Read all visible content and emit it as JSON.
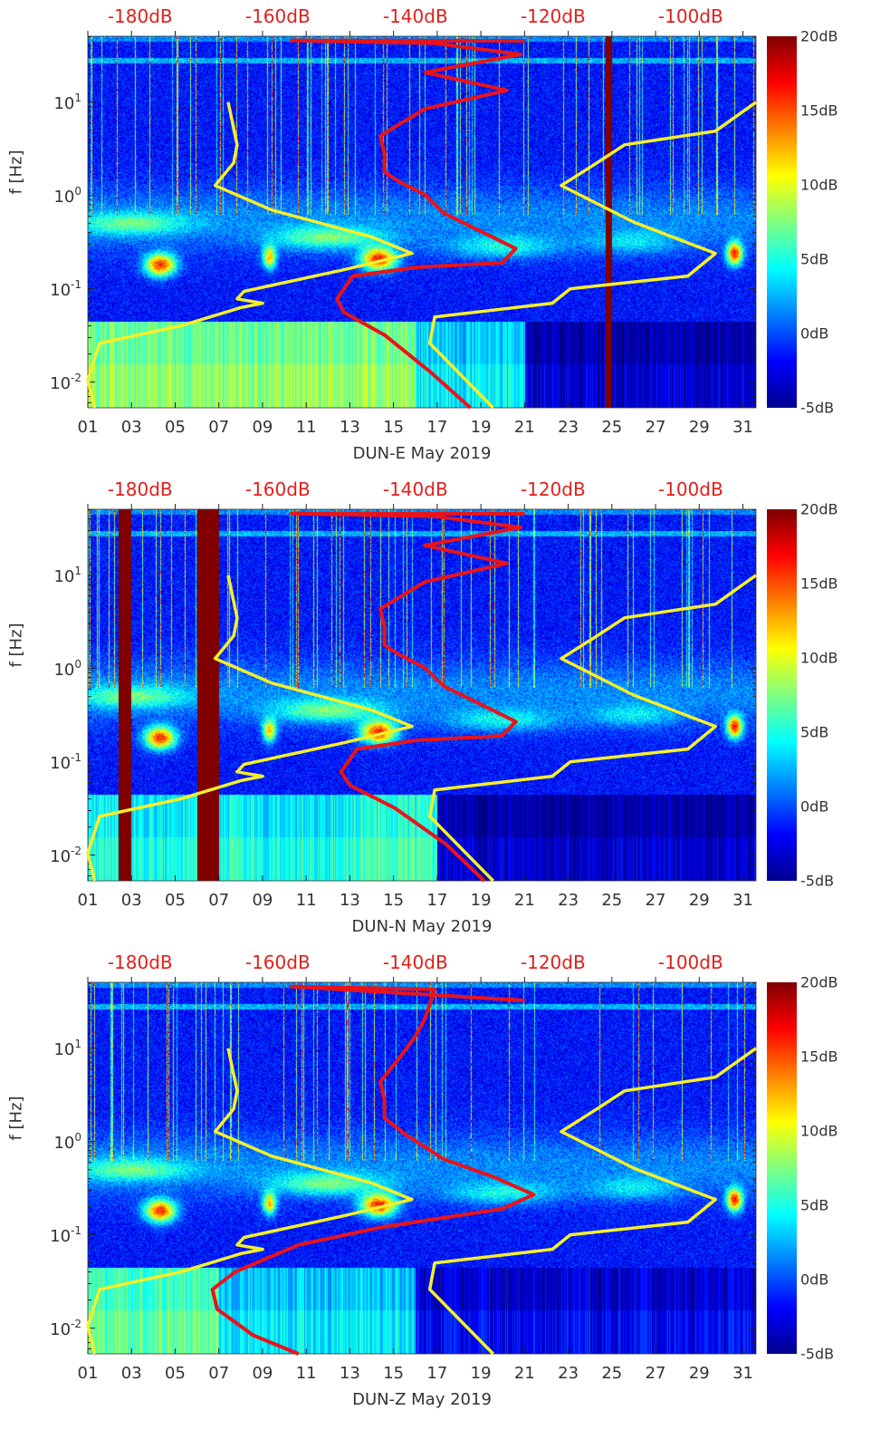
{
  "chart_data": [
    {
      "type": "heatmap",
      "xlabel": "DUN-E May 2019",
      "ylabel": "f [Hz]",
      "x_ticks": [
        "01",
        "03",
        "05",
        "07",
        "09",
        "11",
        "13",
        "15",
        "17",
        "19",
        "21",
        "23",
        "25",
        "27",
        "29",
        "31"
      ],
      "x_tick_days": [
        1,
        3,
        5,
        7,
        9,
        11,
        13,
        15,
        17,
        19,
        21,
        23,
        25,
        27,
        29,
        31
      ],
      "xlim_days": [
        1,
        31.6
      ],
      "y_ticks": [
        {
          "base": "10",
          "exp": "1",
          "value": 10
        },
        {
          "base": "10",
          "exp": "0",
          "value": 1
        },
        {
          "base": "10",
          "exp": "-1",
          "value": 0.1
        },
        {
          "base": "10",
          "exp": "-2",
          "value": 0.01
        }
      ],
      "ylim_hz": [
        0.0053,
        51
      ],
      "top_axis": {
        "labels": [
          "-180dB",
          "-160dB",
          "-140dB",
          "-120dB",
          "-100dB"
        ],
        "values": [
          -180,
          -160,
          -140,
          -120,
          -100
        ],
        "xlim_db": [
          -187.6,
          -90.5
        ]
      },
      "colorbar": {
        "labels": [
          "20dB",
          "15dB",
          "10dB",
          "5dB",
          "0dB",
          "-5dB"
        ],
        "values": [
          20,
          15,
          10,
          5,
          0,
          -5
        ],
        "range": [
          -5,
          20
        ]
      },
      "data_gaps_days": [
        [
          24.7,
          25.0
        ]
      ],
      "low_freq_levels": [
        [
          1,
          16,
          7
        ],
        [
          16,
          21,
          3
        ],
        [
          21,
          32,
          -4
        ]
      ],
      "series": [
        {
          "name": "low-noise-model",
          "color": "#f5ef2a",
          "points": [
            [
              -167.2,
              10
            ],
            [
              -165.9,
              3.5
            ],
            [
              -166.4,
              2.24
            ],
            [
              -169.1,
              1.28
            ],
            [
              -160.9,
              0.7
            ],
            [
              -146.4,
              0.36
            ],
            [
              -140.5,
              0.24
            ],
            [
              -150.4,
              0.16
            ],
            [
              -164.9,
              0.094
            ],
            [
              -165.9,
              0.078
            ],
            [
              -162.2,
              0.07
            ],
            [
              -165.3,
              0.063
            ],
            [
              -174.1,
              0.04
            ],
            [
              -185.9,
              0.026
            ],
            [
              -187.6,
              0.0105
            ],
            [
              -186.6,
              0.0053
            ]
          ]
        },
        {
          "name": "high-noise-model",
          "color": "#f5ef2a",
          "points": [
            [
              -90.5,
              10
            ],
            [
              -96.4,
              4.9
            ],
            [
              -109.6,
              3.5
            ],
            [
              -113.6,
              2.24
            ],
            [
              -118.8,
              1.28
            ],
            [
              -108.3,
              0.52
            ],
            [
              -96.4,
              0.24
            ],
            [
              -100.4,
              0.137
            ],
            [
              -117.5,
              0.1
            ],
            [
              -120.1,
              0.07
            ],
            [
              -137.2,
              0.05
            ],
            [
              -137.9,
              0.026
            ],
            [
              -128.7,
              0.0053
            ]
          ]
        },
        {
          "name": "station-psd",
          "color": "#e8141a",
          "points": [
            [
              -124.1,
              45.6
            ],
            [
              -158,
              46
            ],
            [
              -137.2,
              42.8
            ],
            [
              -124.7,
              32.6
            ],
            [
              -138.6,
              20.9
            ],
            [
              -126.7,
              13.4
            ],
            [
              -138.6,
              8.5
            ],
            [
              -145.1,
              4.37
            ],
            [
              -144.5,
              2.8
            ],
            [
              -144.5,
              1.79
            ],
            [
              -142.5,
              1.43
            ],
            [
              -138.6,
              1.02
            ],
            [
              -135.9,
              0.65
            ],
            [
              -130.7,
              0.42
            ],
            [
              -125.4,
              0.27
            ],
            [
              -127.4,
              0.19
            ],
            [
              -139.9,
              0.17
            ],
            [
              -149.1,
              0.137
            ],
            [
              -151.4,
              0.078
            ],
            [
              -150.4,
              0.056
            ],
            [
              -144.5,
              0.032
            ],
            [
              -137.9,
              0.013
            ],
            [
              -132.0,
              0.0053
            ]
          ]
        }
      ]
    },
    {
      "type": "heatmap",
      "xlabel": "DUN-N May 2019",
      "ylabel": "f [Hz]",
      "x_ticks": [
        "01",
        "03",
        "05",
        "07",
        "09",
        "11",
        "13",
        "15",
        "17",
        "19",
        "21",
        "23",
        "25",
        "27",
        "29",
        "31"
      ],
      "x_tick_days": [
        1,
        3,
        5,
        7,
        9,
        11,
        13,
        15,
        17,
        19,
        21,
        23,
        25,
        27,
        29,
        31
      ],
      "xlim_days": [
        1,
        31.6
      ],
      "y_ticks": [
        {
          "base": "10",
          "exp": "1",
          "value": 10
        },
        {
          "base": "10",
          "exp": "0",
          "value": 1
        },
        {
          "base": "10",
          "exp": "-1",
          "value": 0.1
        },
        {
          "base": "10",
          "exp": "-2",
          "value": 0.01
        }
      ],
      "ylim_hz": [
        0.0053,
        51
      ],
      "top_axis": {
        "labels": [
          "-180dB",
          "-160dB",
          "-140dB",
          "-120dB",
          "-100dB"
        ],
        "values": [
          -180,
          -160,
          -140,
          -120,
          -100
        ],
        "xlim_db": [
          -187.6,
          -90.5
        ]
      },
      "colorbar": {
        "labels": [
          "20dB",
          "15dB",
          "10dB",
          "5dB",
          "0dB",
          "-5dB"
        ],
        "values": [
          20,
          15,
          10,
          5,
          0,
          -5
        ],
        "range": [
          -5,
          20
        ]
      },
      "data_gaps_days": [
        [
          2.4,
          2.95
        ],
        [
          6.0,
          7.0
        ]
      ],
      "low_freq_levels": [
        [
          1,
          13,
          4
        ],
        [
          13,
          17,
          5
        ],
        [
          17,
          32,
          -4
        ]
      ],
      "series": [
        {
          "name": "low-noise-model",
          "color": "#f5ef2a",
          "points": [
            [
              -167.2,
              10
            ],
            [
              -165.9,
              3.5
            ],
            [
              -166.4,
              2.24
            ],
            [
              -169.1,
              1.28
            ],
            [
              -160.9,
              0.7
            ],
            [
              -146.4,
              0.36
            ],
            [
              -140.5,
              0.24
            ],
            [
              -150.4,
              0.16
            ],
            [
              -164.9,
              0.094
            ],
            [
              -165.9,
              0.078
            ],
            [
              -162.2,
              0.07
            ],
            [
              -165.3,
              0.063
            ],
            [
              -174.1,
              0.04
            ],
            [
              -185.9,
              0.026
            ],
            [
              -187.6,
              0.0105
            ],
            [
              -186.6,
              0.0053
            ]
          ]
        },
        {
          "name": "high-noise-model",
          "color": "#f5ef2a",
          "points": [
            [
              -90.5,
              10
            ],
            [
              -96.4,
              4.9
            ],
            [
              -109.6,
              3.5
            ],
            [
              -113.6,
              2.24
            ],
            [
              -118.8,
              1.28
            ],
            [
              -108.3,
              0.52
            ],
            [
              -96.4,
              0.24
            ],
            [
              -100.4,
              0.137
            ],
            [
              -117.5,
              0.1
            ],
            [
              -120.1,
              0.07
            ],
            [
              -137.2,
              0.05
            ],
            [
              -137.9,
              0.026
            ],
            [
              -128.7,
              0.0053
            ]
          ]
        },
        {
          "name": "station-psd",
          "color": "#e8141a",
          "points": [
            [
              -124.1,
              45.6
            ],
            [
              -158,
              46
            ],
            [
              -137.2,
              42.8
            ],
            [
              -124.7,
              32.6
            ],
            [
              -138.6,
              20.9
            ],
            [
              -126.7,
              13.4
            ],
            [
              -138.6,
              8.5
            ],
            [
              -145.1,
              4.37
            ],
            [
              -144.5,
              2.8
            ],
            [
              -144.5,
              1.79
            ],
            [
              -142.5,
              1.43
            ],
            [
              -138.6,
              1.02
            ],
            [
              -135.9,
              0.65
            ],
            [
              -130.7,
              0.42
            ],
            [
              -125.4,
              0.27
            ],
            [
              -127.4,
              0.19
            ],
            [
              -139.9,
              0.17
            ],
            [
              -148.5,
              0.137
            ],
            [
              -150.8,
              0.078
            ],
            [
              -149.5,
              0.056
            ],
            [
              -143,
              0.032
            ],
            [
              -135.5,
              0.013
            ],
            [
              -130.0,
              0.0053
            ]
          ]
        }
      ]
    },
    {
      "type": "heatmap",
      "xlabel": "DUN-Z May 2019",
      "ylabel": "f [Hz]",
      "x_ticks": [
        "01",
        "03",
        "05",
        "07",
        "09",
        "11",
        "13",
        "15",
        "17",
        "19",
        "21",
        "23",
        "25",
        "27",
        "29",
        "31"
      ],
      "x_tick_days": [
        1,
        3,
        5,
        7,
        9,
        11,
        13,
        15,
        17,
        19,
        21,
        23,
        25,
        27,
        29,
        31
      ],
      "xlim_days": [
        1,
        31.6
      ],
      "y_ticks": [
        {
          "base": "10",
          "exp": "1",
          "value": 10
        },
        {
          "base": "10",
          "exp": "0",
          "value": 1
        },
        {
          "base": "10",
          "exp": "-1",
          "value": 0.1
        },
        {
          "base": "10",
          "exp": "-2",
          "value": 0.01
        }
      ],
      "ylim_hz": [
        0.0053,
        51
      ],
      "top_axis": {
        "labels": [
          "-180dB",
          "-160dB",
          "-140dB",
          "-120dB",
          "-100dB"
        ],
        "values": [
          -180,
          -160,
          -140,
          -120,
          -100
        ],
        "xlim_db": [
          -187.6,
          -90.5
        ]
      },
      "colorbar": {
        "labels": [
          "20dB",
          "15dB",
          "10dB",
          "5dB",
          "0dB",
          "-5dB"
        ],
        "values": [
          20,
          15,
          10,
          5,
          0,
          -5
        ],
        "range": [
          -5,
          20
        ]
      },
      "data_gaps_days": [],
      "low_freq_levels": [
        [
          1,
          7,
          6
        ],
        [
          7,
          16,
          3
        ],
        [
          16,
          32,
          -3
        ]
      ],
      "series": [
        {
          "name": "low-noise-model",
          "color": "#f5ef2a",
          "points": [
            [
              -167.2,
              10
            ],
            [
              -165.9,
              3.5
            ],
            [
              -166.4,
              2.24
            ],
            [
              -169.1,
              1.28
            ],
            [
              -160.9,
              0.7
            ],
            [
              -146.4,
              0.36
            ],
            [
              -140.5,
              0.24
            ],
            [
              -150.4,
              0.16
            ],
            [
              -164.9,
              0.094
            ],
            [
              -165.9,
              0.078
            ],
            [
              -162.2,
              0.07
            ],
            [
              -165.3,
              0.063
            ],
            [
              -174.1,
              0.04
            ],
            [
              -185.9,
              0.026
            ],
            [
              -187.6,
              0.0105
            ],
            [
              -186.6,
              0.0053
            ]
          ]
        },
        {
          "name": "high-noise-model",
          "color": "#f5ef2a",
          "points": [
            [
              -90.5,
              10
            ],
            [
              -96.4,
              4.9
            ],
            [
              -109.6,
              3.5
            ],
            [
              -113.6,
              2.24
            ],
            [
              -118.8,
              1.28
            ],
            [
              -108.3,
              0.52
            ],
            [
              -96.4,
              0.24
            ],
            [
              -100.4,
              0.137
            ],
            [
              -117.5,
              0.1
            ],
            [
              -120.1,
              0.07
            ],
            [
              -137.2,
              0.05
            ],
            [
              -137.9,
              0.026
            ],
            [
              -128.7,
              0.0053
            ]
          ]
        },
        {
          "name": "station-psd",
          "color": "#e8141a",
          "points": [
            [
              -124.1,
              32.6
            ],
            [
              -158,
              46
            ],
            [
              -137.2,
              42.8
            ],
            [
              -138.6,
              20.9
            ],
            [
              -140,
              13.4
            ],
            [
              -142,
              8.5
            ],
            [
              -145.1,
              4.37
            ],
            [
              -144.5,
              2.8
            ],
            [
              -144.5,
              1.79
            ],
            [
              -141.5,
              1.2
            ],
            [
              -135.9,
              0.65
            ],
            [
              -128.7,
              0.42
            ],
            [
              -122.8,
              0.27
            ],
            [
              -127.4,
              0.19
            ],
            [
              -145.1,
              0.12
            ],
            [
              -157.0,
              0.078
            ],
            [
              -166.2,
              0.04
            ],
            [
              -169.5,
              0.026
            ],
            [
              -168.8,
              0.016
            ],
            [
              -163.6,
              0.0084
            ],
            [
              -157.0,
              0.0053
            ]
          ]
        }
      ]
    }
  ]
}
